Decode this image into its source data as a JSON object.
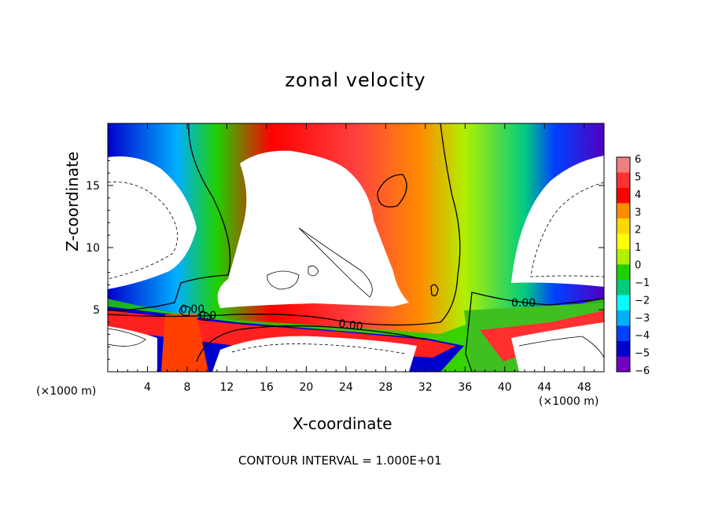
{
  "title": "zonal velocity",
  "footer": "CONTOUR INTERVAL = 1.000E+01",
  "chart_data": {
    "type": "heatmap",
    "title": "zonal velocity",
    "xlabel": "X-coordinate",
    "ylabel": "Z-coordinate",
    "x_unit_label": "(×1000 m)",
    "xlim": [
      0,
      50
    ],
    "ylim": [
      0,
      20
    ],
    "xticks": [
      4,
      8,
      12,
      16,
      20,
      24,
      28,
      32,
      36,
      40,
      44,
      48
    ],
    "yticks": [
      5,
      10,
      15
    ],
    "colorbar": {
      "ticks": [
        6,
        5,
        4,
        3,
        2,
        1,
        0,
        -1,
        -2,
        -3,
        -4,
        -5,
        -6
      ],
      "range": [
        -6,
        6
      ],
      "colors": [
        "#f08080",
        "#ff3030",
        "#ff0000",
        "#ff8c00",
        "#ffd700",
        "#ffff00",
        "#b0f000",
        "#20d000",
        "#00cc80",
        "#00ffff",
        "#00b0ff",
        "#0040ff",
        "#0000cc",
        "#7000c0"
      ]
    },
    "contour_labels": [
      "0.00",
      "0.00",
      "0.00",
      "0.0"
    ],
    "contour_interval": "1.000E+01",
    "missing_color": "#ffffff"
  }
}
